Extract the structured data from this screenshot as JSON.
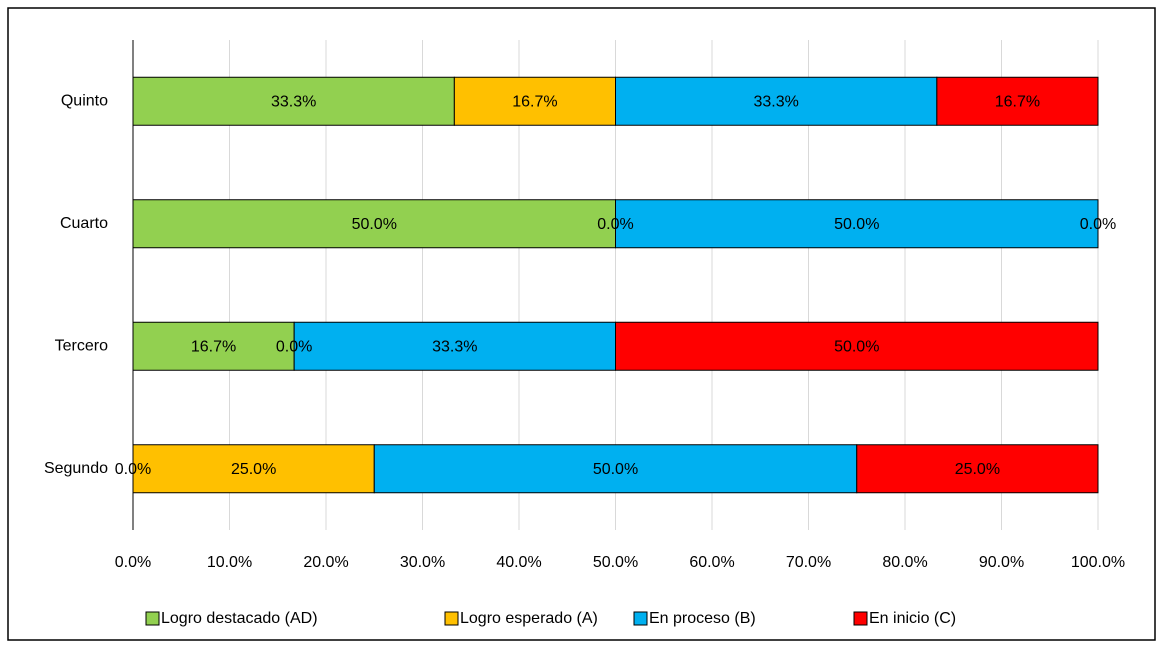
{
  "chart_data": {
    "type": "stacked-bar-horizontal",
    "categories": [
      "Segundo",
      "Tercero",
      "Cuarto",
      "Quinto"
    ],
    "series": [
      {
        "name": "Logro destacado (AD)",
        "color": "#92d050",
        "values": [
          0,
          16.7,
          50,
          33.3
        ],
        "value_labels": [
          "0.0%",
          "16.7%",
          "50.0%",
          "33.3%"
        ]
      },
      {
        "name": "Logro esperado (A)",
        "color": "#ffc000",
        "values": [
          25,
          0,
          0,
          16.7
        ],
        "value_labels": [
          "25.0%",
          "0.0%",
          "0.0%",
          "16.7%"
        ]
      },
      {
        "name": "En proceso (B)",
        "color": "#00b0f0",
        "values": [
          50,
          33.3,
          50,
          33.3
        ],
        "value_labels": [
          "50.0%",
          "33.3%",
          "50.0%",
          "33.3%"
        ]
      },
      {
        "name": "En inicio (C)",
        "color": "#ff0000",
        "values": [
          25,
          50,
          0,
          16.7
        ],
        "value_labels": [
          "25.0%",
          "50.0%",
          "0.0%",
          "16.7%"
        ]
      }
    ],
    "xlim": [
      0,
      100
    ],
    "xticks": [
      {
        "value": 0,
        "label": "0.0%"
      },
      {
        "value": 10,
        "label": "10.0%"
      },
      {
        "value": 20,
        "label": "20.0%"
      },
      {
        "value": 30,
        "label": "30.0%"
      },
      {
        "value": 40,
        "label": "40.0%"
      },
      {
        "value": 50,
        "label": "50.0%"
      },
      {
        "value": 60,
        "label": "60.0%"
      },
      {
        "value": 70,
        "label": "70.0%"
      },
      {
        "value": 80,
        "label": "80.0%"
      },
      {
        "value": 90,
        "label": "90.0%"
      },
      {
        "value": 100,
        "label": "100.0%"
      }
    ],
    "grid": true,
    "legend": "bottom"
  }
}
